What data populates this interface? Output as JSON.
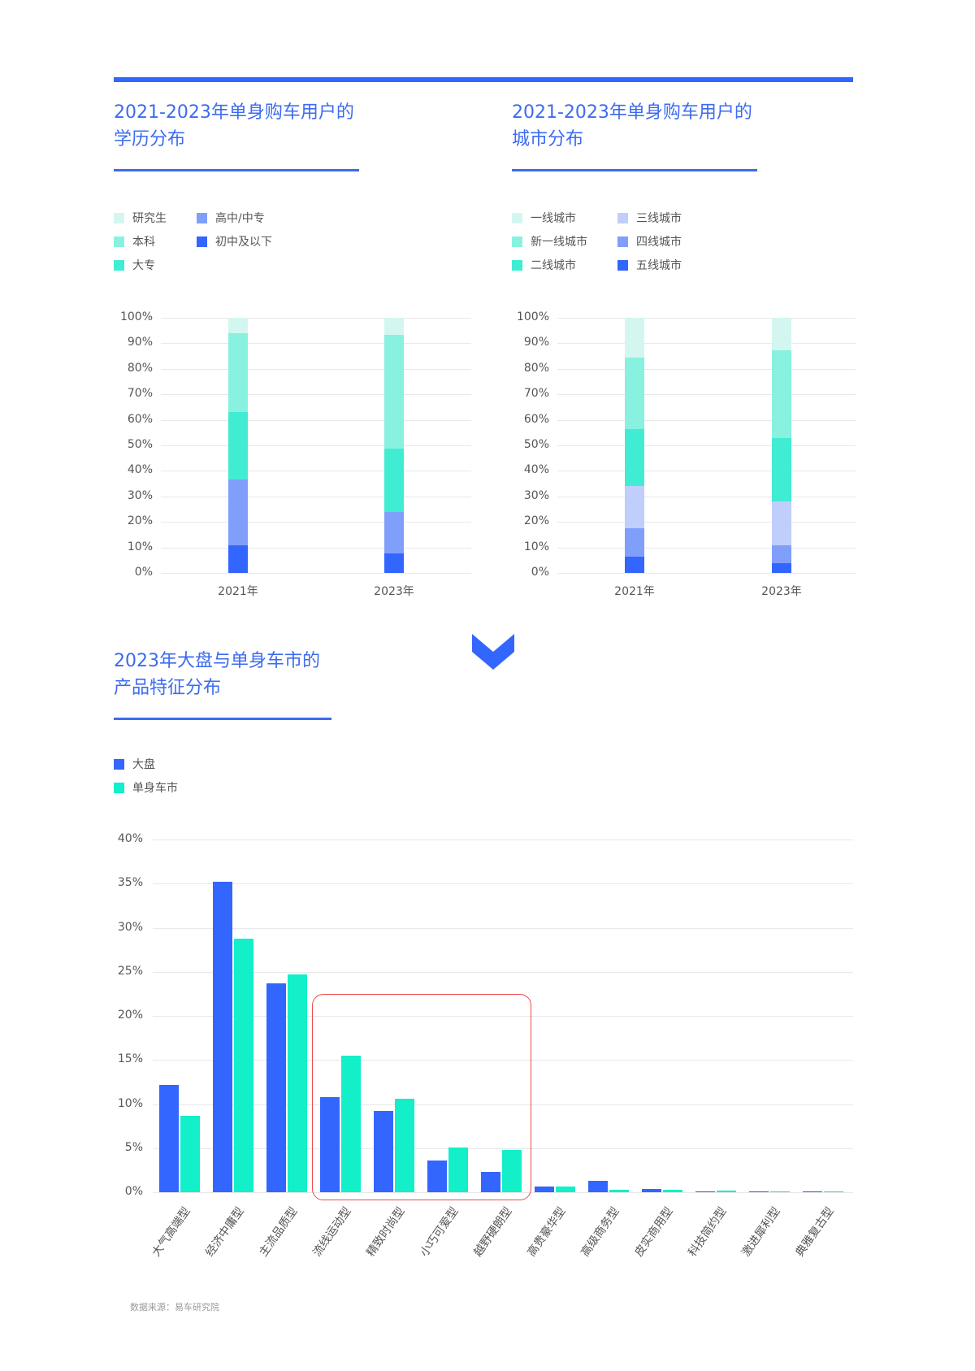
{
  "colors": {
    "accent": "#3366ff",
    "title": "#3d6bf0",
    "highlight": "#ee4a4a"
  },
  "section1": {
    "title_line1": "2021-2023年单身购车用户的",
    "title_line2": "学历分布",
    "legend": [
      {
        "label": "研究生",
        "color": "#d3f7f0"
      },
      {
        "label": "本科",
        "color": "#88f1df"
      },
      {
        "label": "大专",
        "color": "#40edd2"
      },
      {
        "label": "高中/中专",
        "color": "#809ffa"
      },
      {
        "label": "初中及以下",
        "color": "#3366ff"
      }
    ]
  },
  "section2": {
    "title_line1": "2021-2023年单身购车用户的",
    "title_line2": "城市分布",
    "legend": [
      {
        "label": "一线城市",
        "color": "#d3f7f0"
      },
      {
        "label": "新一线城市",
        "color": "#88f1df"
      },
      {
        "label": "二线城市",
        "color": "#40edd2"
      },
      {
        "label": "三线城市",
        "color": "#c0cefc"
      },
      {
        "label": "四线城市",
        "color": "#809ffa"
      },
      {
        "label": "五线城市",
        "color": "#3366ff"
      }
    ]
  },
  "section3": {
    "title_line1": "2023年大盘与单身车市的",
    "title_line2": "产品特征分布",
    "legend": [
      {
        "label": "大盘",
        "color": "#3366ff"
      },
      {
        "label": "单身车市",
        "color": "#13efc9"
      }
    ],
    "source": "数据来源：易车研究院"
  },
  "chart_data": [
    {
      "type": "bar",
      "stacked": true,
      "title": "2021-2023年单身购车用户的学历分布",
      "categories": [
        "2021年",
        "2023年"
      ],
      "yticks": [
        "100%",
        "90%",
        "80%",
        "70%",
        "60%",
        "50%",
        "40%",
        "30%",
        "20%",
        "10%",
        "0%"
      ],
      "ylim": [
        0,
        100
      ],
      "grid": true,
      "legend_position": "top",
      "series": [
        {
          "name": "初中及以下",
          "values": [
            10.7,
            7.8
          ]
        },
        {
          "name": "高中/中专",
          "values": [
            25.8,
            16.1
          ]
        },
        {
          "name": "大专",
          "values": [
            26.6,
            24.7
          ]
        },
        {
          "name": "本科",
          "values": [
            31.0,
            44.7
          ]
        },
        {
          "name": "研究生",
          "values": [
            5.9,
            6.7
          ]
        }
      ]
    },
    {
      "type": "bar",
      "stacked": true,
      "title": "2021-2023年单身购车用户的城市分布",
      "categories": [
        "2021年",
        "2023年"
      ],
      "yticks": [
        "100%",
        "90%",
        "80%",
        "70%",
        "60%",
        "50%",
        "40%",
        "30%",
        "20%",
        "10%",
        "0%"
      ],
      "ylim": [
        0,
        100
      ],
      "grid": true,
      "legend_position": "top",
      "series": [
        {
          "name": "五线城市",
          "values": [
            6.5,
            3.7
          ]
        },
        {
          "name": "四线城市",
          "values": [
            10.9,
            7.2
          ]
        },
        {
          "name": "三线城市",
          "values": [
            16.6,
            17.0
          ]
        },
        {
          "name": "二线城市",
          "values": [
            22.3,
            25.0
          ]
        },
        {
          "name": "新一线城市",
          "values": [
            28.2,
            34.5
          ]
        },
        {
          "name": "一线城市",
          "values": [
            15.5,
            12.6
          ]
        }
      ]
    },
    {
      "type": "bar",
      "stacked": false,
      "title": "2023年大盘与单身车市的产品特征分布",
      "categories": [
        "大气高端型",
        "经济中庸型",
        "主流品质型",
        "流线运动型",
        "精致时尚型",
        "小巧可爱型",
        "越野硬朗型",
        "高贵豪华型",
        "高级商务型",
        "皮实商用型",
        "科技简约型",
        "激进犀利型",
        "典雅复古型"
      ],
      "yticks": [
        "40%",
        "35%",
        "30%",
        "25%",
        "20%",
        "15%",
        "10%",
        "5%",
        "0%"
      ],
      "ylim": [
        0,
        40
      ],
      "grid": true,
      "legend_position": "top",
      "annotations": [
        "red rounded box highlighting 流线运动型 to 越野硬朗型"
      ],
      "series": [
        {
          "name": "大盘",
          "values": [
            12.2,
            35.2,
            23.7,
            10.8,
            9.2,
            3.6,
            2.3,
            0.6,
            1.3,
            0.4,
            0.1,
            0.05,
            0.05
          ]
        },
        {
          "name": "单身车市",
          "values": [
            8.7,
            28.8,
            24.7,
            15.5,
            10.6,
            5.1,
            4.8,
            0.6,
            0.3,
            0.3,
            0.2,
            0.1,
            0.1
          ]
        }
      ]
    }
  ]
}
